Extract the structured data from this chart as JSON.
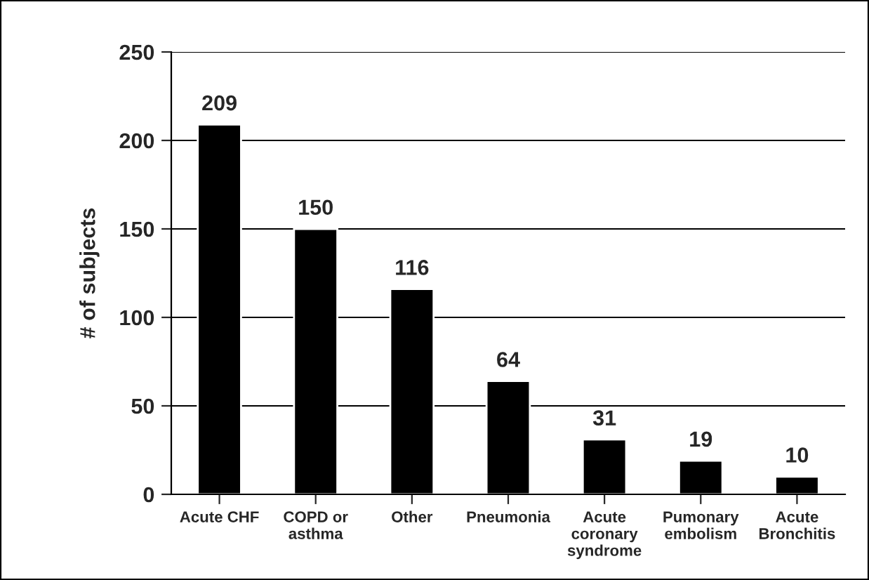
{
  "chart_data": {
    "type": "bar",
    "ylabel": "# of subjects",
    "categories": [
      "Acute CHF",
      "COPD or\nasthma",
      "Other",
      "Pneumonia",
      "Acute\ncoronary\nsyndrome",
      "Pumonary\nembolism",
      "Acute\nBronchitis"
    ],
    "values": [
      209,
      150,
      116,
      64,
      31,
      19,
      10
    ],
    "color": "#000000",
    "ylim": [
      0,
      250
    ],
    "yticks": [
      0,
      50,
      100,
      150,
      200,
      250
    ],
    "grid": "y",
    "data_labels": true
  }
}
